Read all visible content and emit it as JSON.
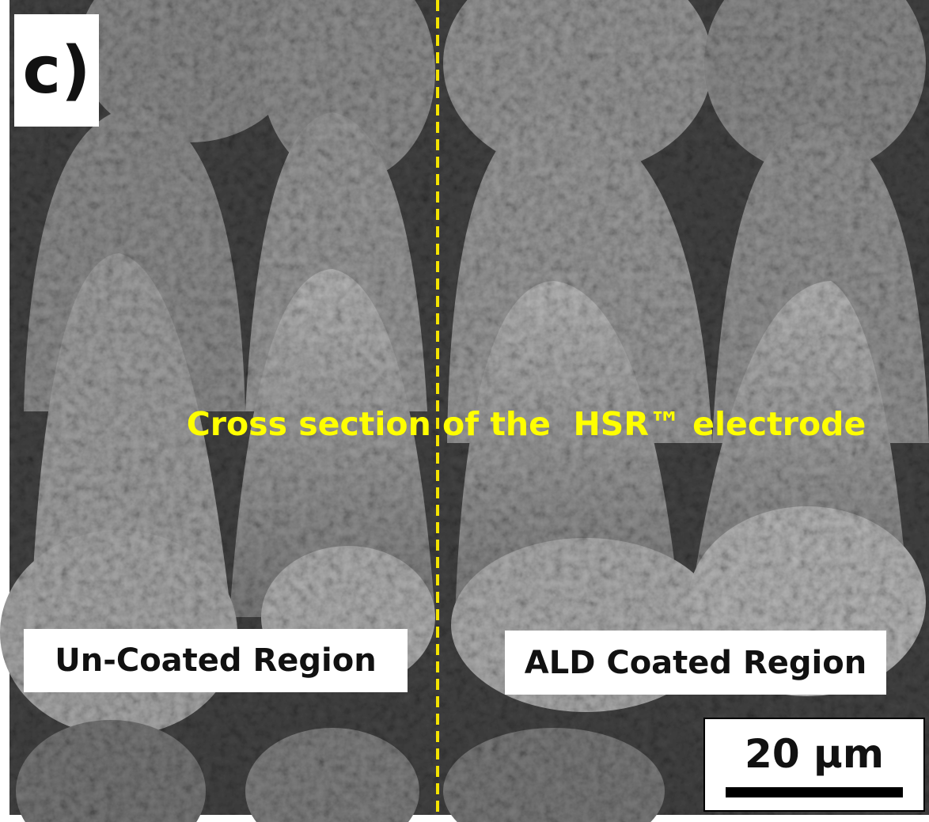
{
  "panel_label": "c)",
  "caption": "Cross section of the  HSR™ electrode",
  "regions": {
    "left": "Un-Coated Region",
    "right": "ALD Coated Region"
  },
  "scale_bar": {
    "label": "20 μm"
  }
}
